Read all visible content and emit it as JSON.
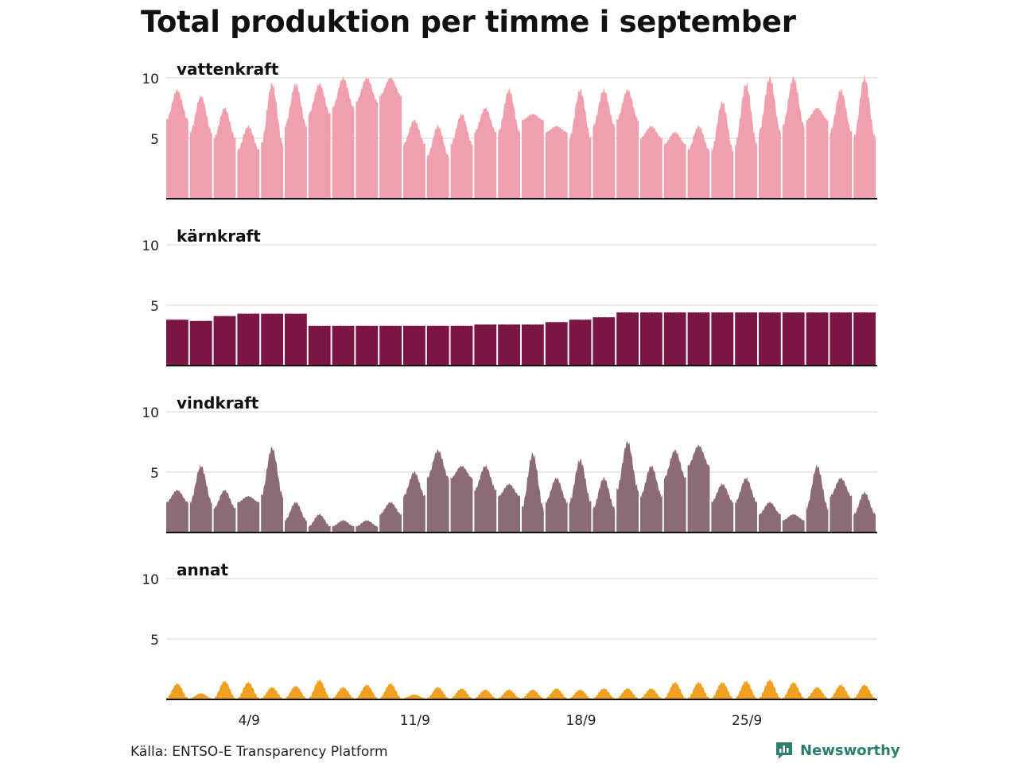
{
  "title": "Total produktion per timme i september",
  "source": "Källa: ENTSO-E Transparency Platform",
  "brand": {
    "name": "Newsworthy",
    "icon": "newsworthy-logo-icon",
    "color": "#2e7d6f"
  },
  "chart_data": {
    "type": "area",
    "title": "Total produktion per timme i september",
    "x_axis": {
      "range": [
        1,
        31
      ],
      "ticks": [
        4,
        11,
        18,
        25
      ],
      "tick_labels": [
        "4/9",
        "11/9",
        "18/9",
        "25/9"
      ]
    },
    "y_axis": {
      "ylim": [
        0,
        10
      ],
      "ticks": [
        5,
        10
      ],
      "tick_labels": [
        "5",
        "10"
      ]
    },
    "grid": true,
    "facet_days": [
      1,
      2,
      3,
      4,
      5,
      6,
      7,
      8,
      9,
      10,
      11,
      12,
      13,
      14,
      15,
      16,
      17,
      18,
      19,
      20,
      21,
      22,
      23,
      24,
      25,
      26,
      27,
      28,
      29,
      30
    ],
    "series": [
      {
        "name": "vattenkraft",
        "color": "#f0a0ad",
        "daily_min": [
          6.5,
          5.5,
          5.0,
          4.0,
          4.5,
          6.0,
          7.0,
          7.5,
          8.0,
          8.5,
          4.5,
          3.5,
          4.5,
          5.5,
          5.5,
          6.5,
          5.5,
          5.0,
          6.0,
          6.5,
          5.0,
          4.5,
          4.0,
          4.0,
          4.5,
          5.5,
          6.0,
          6.5,
          5.5,
          5.0
        ],
        "daily_max": [
          9.0,
          8.5,
          7.5,
          6.0,
          9.5,
          9.5,
          9.5,
          10.0,
          10.0,
          10.0,
          6.5,
          6.0,
          7.0,
          7.5,
          9.0,
          7.0,
          6.0,
          9.0,
          9.0,
          9.0,
          6.0,
          5.5,
          6.0,
          8.0,
          9.5,
          10.0,
          10.0,
          7.5,
          9.0,
          10.0
        ]
      },
      {
        "name": "kärnkraft",
        "color": "#7b1545",
        "daily_min": [
          3.8,
          3.7,
          4.1,
          4.3,
          4.3,
          4.3,
          3.3,
          3.3,
          3.3,
          3.3,
          3.3,
          3.3,
          3.3,
          3.4,
          3.4,
          3.4,
          3.6,
          3.8,
          4.0,
          4.4,
          4.4,
          4.4,
          4.4,
          4.4,
          4.4,
          4.4,
          4.4,
          4.4,
          4.4,
          4.4
        ],
        "daily_max": [
          3.8,
          3.7,
          4.1,
          4.3,
          4.3,
          4.3,
          3.3,
          3.3,
          3.3,
          3.3,
          3.3,
          3.3,
          3.3,
          3.4,
          3.4,
          3.4,
          3.6,
          3.8,
          4.0,
          4.4,
          4.4,
          4.4,
          4.4,
          4.4,
          4.4,
          4.4,
          4.4,
          4.4,
          4.4,
          4.4
        ]
      },
      {
        "name": "vindkraft",
        "color": "#8c6b78",
        "daily_min": [
          2.5,
          2.5,
          2.0,
          2.5,
          3.0,
          1.0,
          0.5,
          0.5,
          0.5,
          1.5,
          3.0,
          4.5,
          4.5,
          3.5,
          3.0,
          2.0,
          2.5,
          2.5,
          2.0,
          3.5,
          3.0,
          4.5,
          5.5,
          2.5,
          2.5,
          1.5,
          1.0,
          2.0,
          3.0,
          1.5
        ],
        "daily_max": [
          3.5,
          5.5,
          3.5,
          3.0,
          7.0,
          2.5,
          1.5,
          1.0,
          1.0,
          2.5,
          5.0,
          6.8,
          5.5,
          5.5,
          4.0,
          6.5,
          4.5,
          6.0,
          4.5,
          7.5,
          5.5,
          6.8,
          7.2,
          4.0,
          4.5,
          2.5,
          1.5,
          5.5,
          4.5,
          3.3
        ]
      },
      {
        "name": "annat",
        "color": "#f0a020",
        "daily_min": [
          0.1,
          0.1,
          0.1,
          0.1,
          0.1,
          0.1,
          0.1,
          0.1,
          0.1,
          0.1,
          0.1,
          0.1,
          0.1,
          0.1,
          0.1,
          0.1,
          0.1,
          0.1,
          0.1,
          0.1,
          0.1,
          0.1,
          0.1,
          0.1,
          0.1,
          0.1,
          0.1,
          0.1,
          0.1,
          0.1
        ],
        "daily_max": [
          1.3,
          0.5,
          1.5,
          1.4,
          1.0,
          1.1,
          1.6,
          1.0,
          1.2,
          1.3,
          0.4,
          1.0,
          0.9,
          0.8,
          0.8,
          0.8,
          0.9,
          0.8,
          0.9,
          0.9,
          0.9,
          1.4,
          1.4,
          1.4,
          1.5,
          1.6,
          1.4,
          1.0,
          1.2,
          1.2
        ]
      }
    ]
  }
}
